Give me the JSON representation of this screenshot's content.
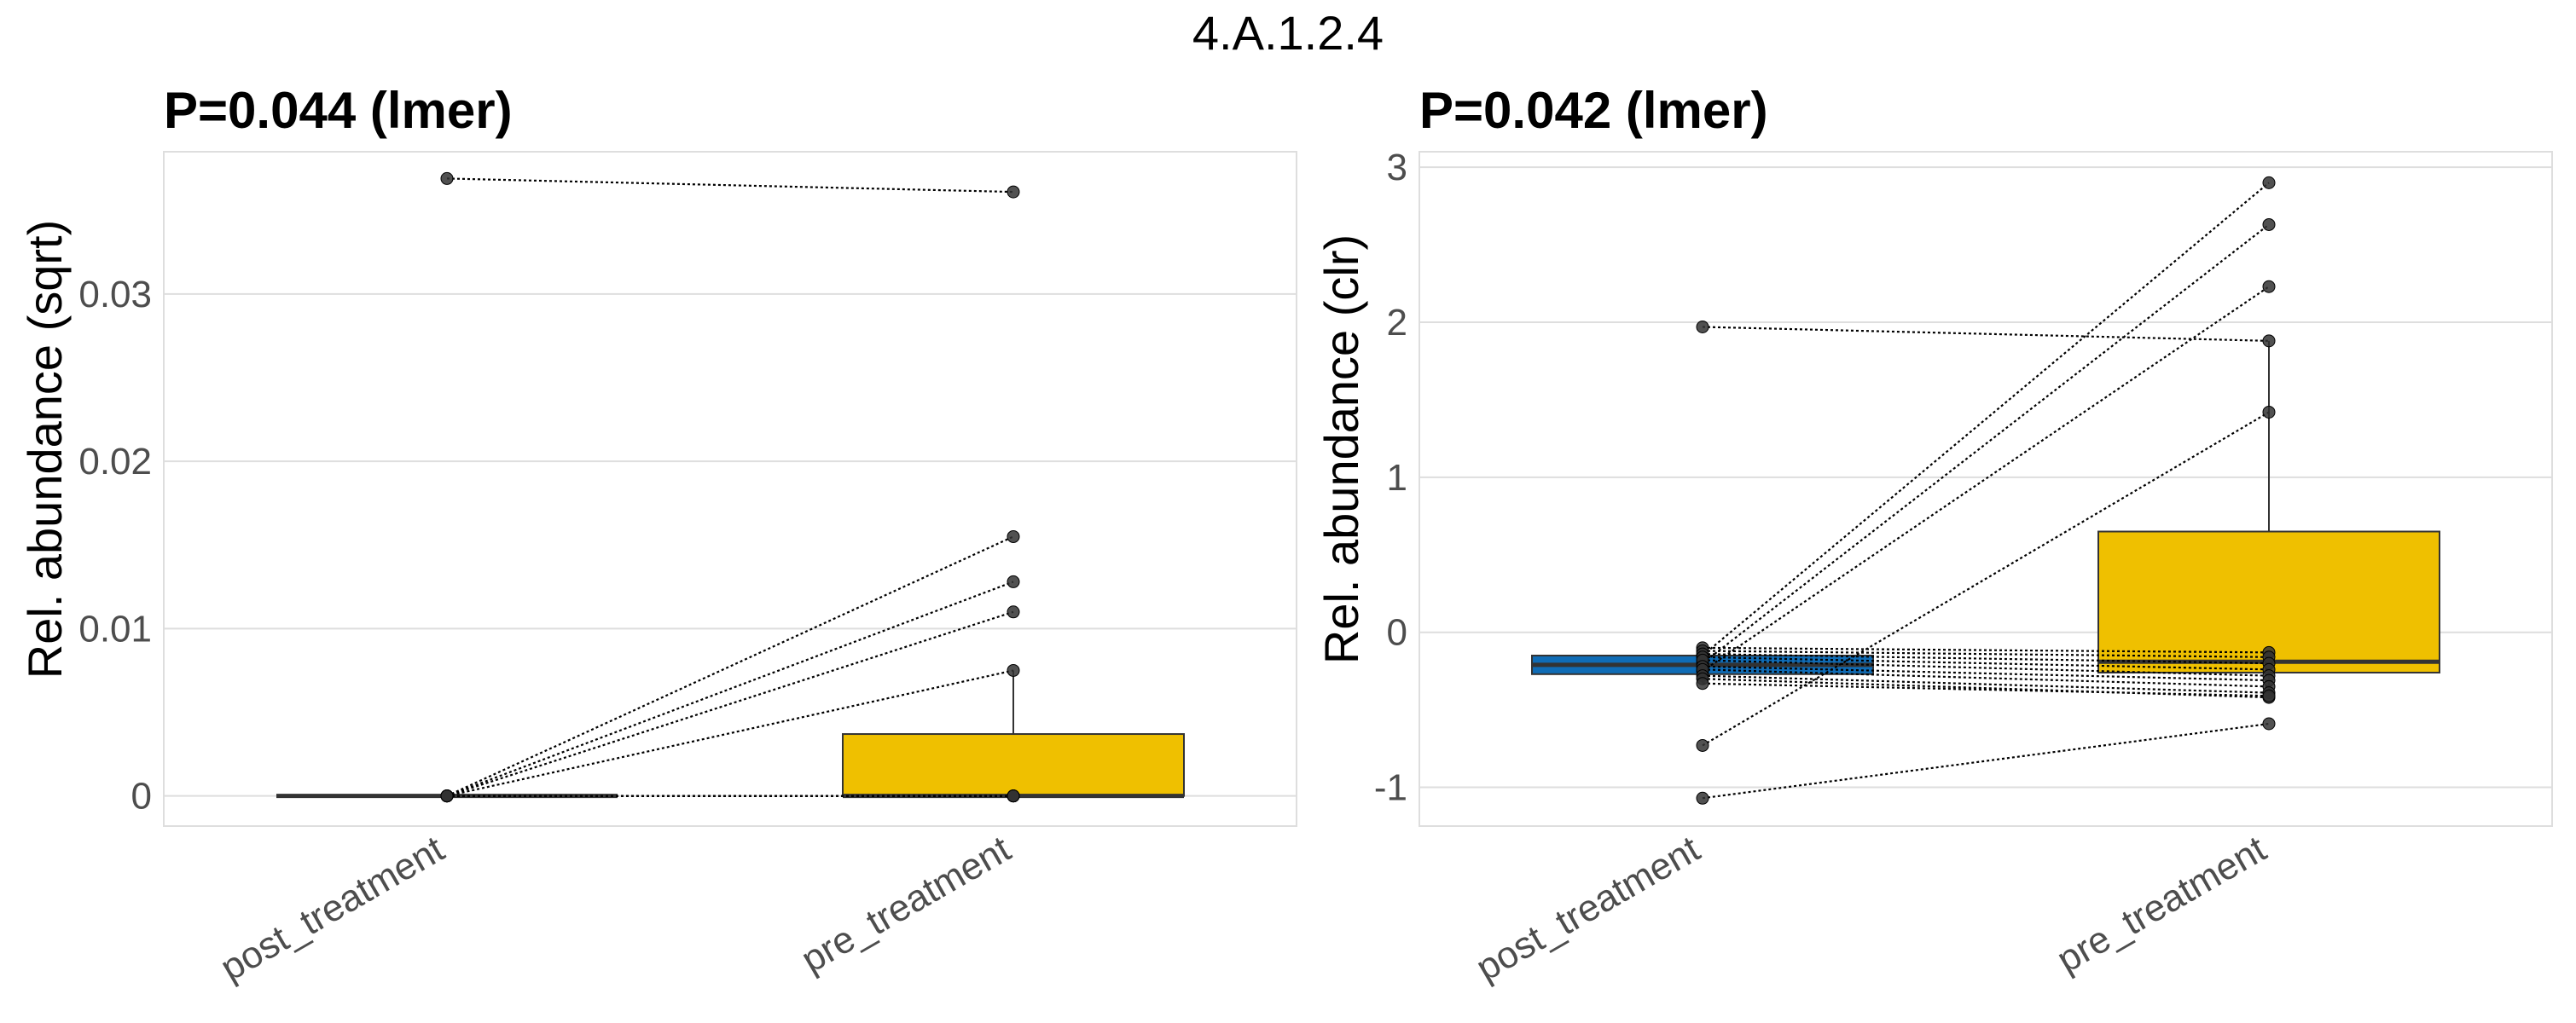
{
  "suptitle": "4.A.1.2.4",
  "chart_data": [
    {
      "type": "box",
      "title": "P=0.044 (lmer)",
      "xlabel": "",
      "ylabel": "Rel. abundance (sqrt)",
      "categories": [
        "post_treatment",
        "pre_treatment"
      ],
      "ylim": [
        -0.0018,
        0.0385
      ],
      "yticks": [
        0,
        0.01,
        0.02,
        0.03
      ],
      "ytick_labels": [
        "0",
        "0.01",
        "0.02",
        "0.03"
      ],
      "grid": true,
      "box_colors": [
        "#0F6CB6",
        "#EFC000"
      ],
      "boxes": [
        {
          "group": "post_treatment",
          "q1": 0,
          "median": 0,
          "q3": 0,
          "whisker_low": 0,
          "whisker_high": 0
        },
        {
          "group": "pre_treatment",
          "q1": 0,
          "median": 0,
          "q3": 0.0037,
          "whisker_low": 0,
          "whisker_high": 0.0075
        }
      ],
      "pairs": [
        [
          0.0369,
          0.0361
        ],
        [
          0,
          0.0155
        ],
        [
          0,
          0.0128
        ],
        [
          0,
          0.011
        ],
        [
          0,
          0.0075
        ],
        [
          0,
          0
        ],
        [
          0,
          0
        ],
        [
          0,
          0
        ],
        [
          0,
          0
        ],
        [
          0,
          0
        ]
      ]
    },
    {
      "type": "box",
      "title": "P=0.042 (lmer)",
      "xlabel": "",
      "ylabel": "Rel. abundance (clr)",
      "categories": [
        "post_treatment",
        "pre_treatment"
      ],
      "ylim": [
        -1.25,
        3.1
      ],
      "yticks": [
        -1,
        0,
        1,
        2,
        3
      ],
      "ytick_labels": [
        "-1",
        "0",
        "1",
        "2",
        "3"
      ],
      "grid": true,
      "box_colors": [
        "#0F6CB6",
        "#EFC000"
      ],
      "boxes": [
        {
          "group": "post_treatment",
          "q1": -0.27,
          "median": -0.21,
          "q3": -0.15,
          "whisker_low": -0.33,
          "whisker_high": -0.1
        },
        {
          "group": "pre_treatment",
          "q1": -0.26,
          "median": -0.19,
          "q3": 0.65,
          "whisker_low": -0.42,
          "whisker_high": 1.88
        }
      ],
      "pairs": [
        [
          1.97,
          1.88
        ],
        [
          -0.15,
          2.9
        ],
        [
          -0.2,
          2.63
        ],
        [
          -0.25,
          2.23
        ],
        [
          -0.73,
          1.42
        ],
        [
          -1.07,
          -0.59
        ],
        [
          -0.1,
          -0.13
        ],
        [
          -0.12,
          -0.16
        ],
        [
          -0.14,
          -0.2
        ],
        [
          -0.16,
          -0.24
        ],
        [
          -0.18,
          -0.28
        ],
        [
          -0.22,
          -0.31
        ],
        [
          -0.24,
          -0.35
        ],
        [
          -0.28,
          -0.39
        ],
        [
          -0.3,
          -0.42
        ],
        [
          -0.33,
          -0.41
        ]
      ]
    }
  ]
}
